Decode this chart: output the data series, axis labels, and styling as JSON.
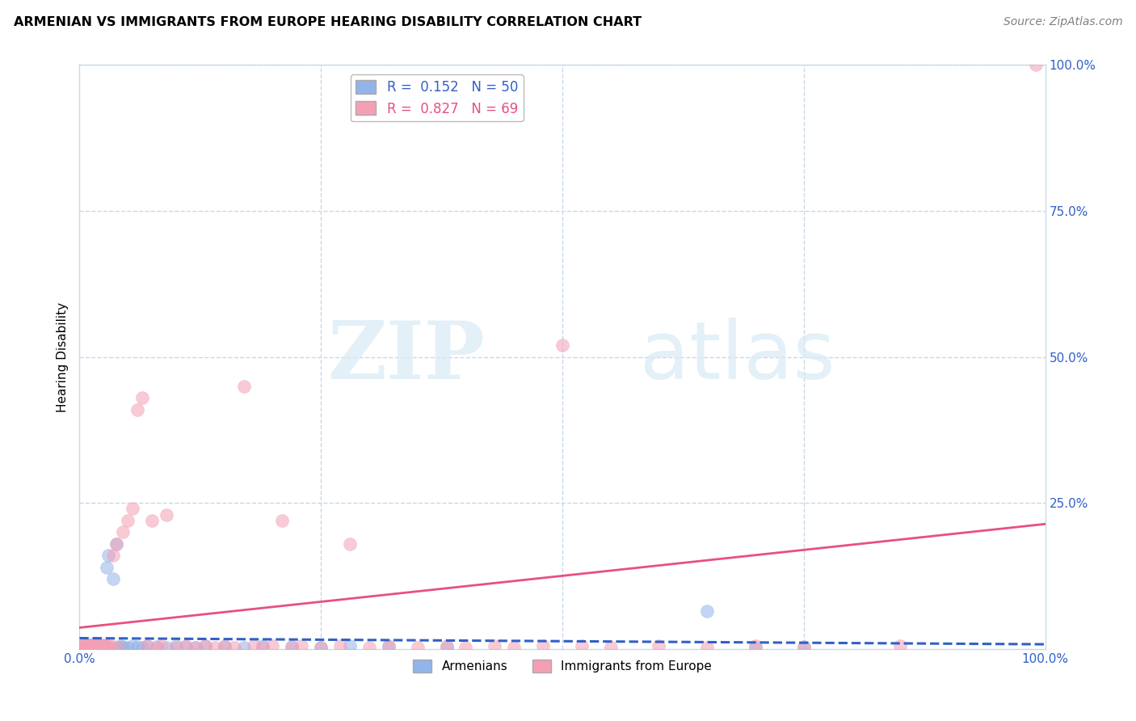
{
  "title": "ARMENIAN VS IMMIGRANTS FROM EUROPE HEARING DISABILITY CORRELATION CHART",
  "source": "Source: ZipAtlas.com",
  "ylabel": "Hearing Disability",
  "xlim": [
    0,
    1.0
  ],
  "ylim": [
    0,
    1.0
  ],
  "legend_label1": "R =  0.152   N = 50",
  "legend_label2": "R =  0.827   N = 69",
  "color_armenian": "#92b4e8",
  "color_europe": "#f4a0b4",
  "color_line_armenian": "#3060c8",
  "color_line_europe": "#e85080",
  "watermark_zip": "ZIP",
  "watermark_atlas": "atlas",
  "armenian_x": [
    0.003,
    0.005,
    0.006,
    0.007,
    0.008,
    0.009,
    0.01,
    0.011,
    0.012,
    0.013,
    0.014,
    0.015,
    0.016,
    0.017,
    0.018,
    0.019,
    0.02,
    0.022,
    0.024,
    0.026,
    0.028,
    0.03,
    0.032,
    0.035,
    0.038,
    0.04,
    0.042,
    0.045,
    0.05,
    0.055,
    0.06,
    0.065,
    0.07,
    0.08,
    0.09,
    0.1,
    0.11,
    0.12,
    0.13,
    0.15,
    0.17,
    0.19,
    0.22,
    0.25,
    0.28,
    0.32,
    0.38,
    0.65,
    0.7,
    0.75
  ],
  "armenian_y": [
    0.005,
    0.008,
    0.003,
    0.006,
    0.004,
    0.007,
    0.005,
    0.003,
    0.006,
    0.004,
    0.008,
    0.003,
    0.005,
    0.007,
    0.004,
    0.006,
    0.003,
    0.005,
    0.004,
    0.006,
    0.14,
    0.16,
    0.003,
    0.12,
    0.18,
    0.003,
    0.005,
    0.004,
    0.003,
    0.005,
    0.004,
    0.003,
    0.005,
    0.004,
    0.003,
    0.005,
    0.004,
    0.003,
    0.005,
    0.004,
    0.003,
    0.005,
    0.004,
    0.003,
    0.005,
    0.004,
    0.003,
    0.065,
    0.003,
    0.004
  ],
  "europe_x": [
    0.003,
    0.004,
    0.005,
    0.006,
    0.007,
    0.008,
    0.009,
    0.01,
    0.011,
    0.012,
    0.013,
    0.014,
    0.015,
    0.016,
    0.018,
    0.02,
    0.022,
    0.024,
    0.026,
    0.028,
    0.03,
    0.032,
    0.035,
    0.038,
    0.04,
    0.045,
    0.05,
    0.055,
    0.06,
    0.065,
    0.07,
    0.075,
    0.08,
    0.085,
    0.09,
    0.1,
    0.11,
    0.12,
    0.13,
    0.14,
    0.15,
    0.16,
    0.17,
    0.18,
    0.19,
    0.2,
    0.21,
    0.22,
    0.23,
    0.25,
    0.27,
    0.28,
    0.3,
    0.32,
    0.35,
    0.38,
    0.4,
    0.43,
    0.45,
    0.48,
    0.5,
    0.52,
    0.55,
    0.6,
    0.65,
    0.7,
    0.75,
    0.85,
    0.99
  ],
  "europe_y": [
    0.005,
    0.004,
    0.006,
    0.003,
    0.005,
    0.004,
    0.007,
    0.003,
    0.005,
    0.004,
    0.006,
    0.003,
    0.005,
    0.007,
    0.004,
    0.005,
    0.006,
    0.003,
    0.005,
    0.004,
    0.005,
    0.006,
    0.16,
    0.18,
    0.003,
    0.2,
    0.22,
    0.24,
    0.41,
    0.43,
    0.005,
    0.22,
    0.003,
    0.005,
    0.23,
    0.003,
    0.005,
    0.003,
    0.005,
    0.003,
    0.005,
    0.003,
    0.45,
    0.005,
    0.003,
    0.005,
    0.22,
    0.003,
    0.005,
    0.003,
    0.005,
    0.18,
    0.003,
    0.005,
    0.003,
    0.005,
    0.003,
    0.005,
    0.003,
    0.005,
    0.52,
    0.005,
    0.003,
    0.005,
    0.003,
    0.005,
    0.003,
    0.005,
    1.0
  ]
}
